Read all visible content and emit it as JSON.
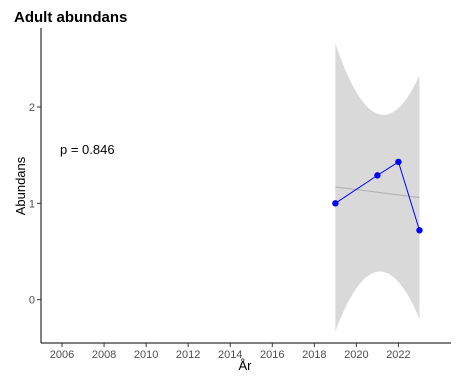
{
  "chart_data": {
    "type": "line",
    "title": "Adult abundans",
    "xlabel": "År",
    "ylabel": "Abundans",
    "annotation": "p = 0.846",
    "xlim": [
      2005,
      2024.5
    ],
    "ylim": [
      -0.45,
      2.82
    ],
    "x_ticks": [
      2006,
      2008,
      2010,
      2012,
      2014,
      2016,
      2018,
      2020,
      2022
    ],
    "y_ticks": [
      0,
      1,
      2
    ],
    "grid": false,
    "series": [
      {
        "x": [
          2019,
          2021,
          2022,
          2023
        ],
        "y": [
          1.0,
          1.29,
          1.43,
          0.72
        ],
        "color": "#0000ff"
      }
    ],
    "trend": {
      "x": [
        2019,
        2023
      ],
      "y": [
        1.17,
        1.06
      ],
      "color": "#b3b3b3"
    },
    "confidence_band": {
      "x": [
        2019,
        2021,
        2023
      ],
      "upper": [
        2.66,
        1.93,
        2.33
      ],
      "lower": [
        -0.33,
        0.29,
        -0.2
      ],
      "color": "#d9d9d9"
    }
  }
}
